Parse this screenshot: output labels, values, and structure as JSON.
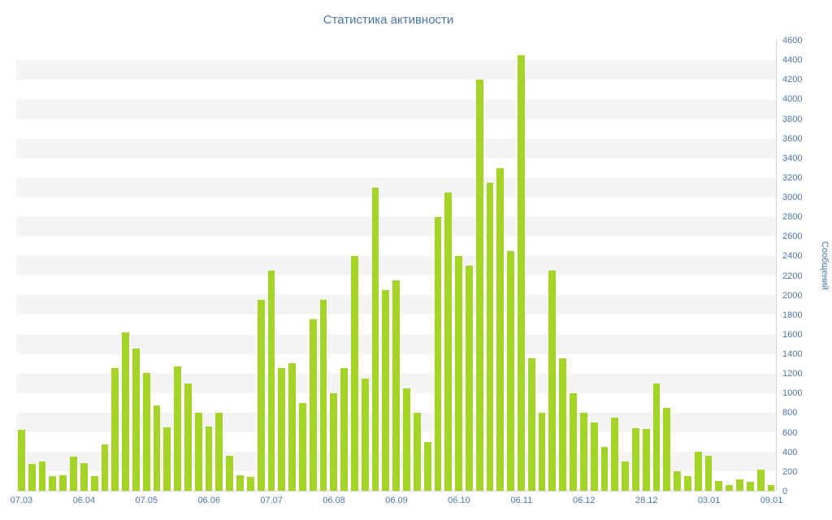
{
  "title": "Статистика активности",
  "colors": {
    "bar": "#a5d428",
    "text": "#4a76ac",
    "stripe": "#f4f4f4",
    "axis_line": "#d8d8d8",
    "background": "#ffffff"
  },
  "chart_data": {
    "type": "bar",
    "title": "Статистика активности",
    "ylabel": "Сообщений",
    "xlabel": "",
    "ylim": [
      0,
      4600
    ],
    "ytick_step": 200,
    "grid": "horizontal-stripes",
    "legend": "none",
    "y_tick_labels": [
      4600,
      4400,
      4200,
      4000,
      3800,
      3600,
      3400,
      3200,
      3000,
      2800,
      2600,
      2400,
      2200,
      2000,
      1800,
      1600,
      1400,
      1200,
      1000,
      800,
      600,
      400,
      200,
      0
    ],
    "x_tick_labels": [
      "07.03",
      "06.04",
      "07.05",
      "06.06",
      "07.07",
      "06.08",
      "06.09",
      "06.10",
      "06.11",
      "06.12",
      "28.12",
      "03.01",
      "09.01"
    ],
    "x_tick_every": 6,
    "values": [
      620,
      270,
      300,
      150,
      160,
      350,
      280,
      150,
      470,
      1250,
      1620,
      1450,
      1200,
      870,
      650,
      1270,
      1100,
      800,
      660,
      800,
      360,
      160,
      140,
      1950,
      2250,
      1250,
      1300,
      900,
      1750,
      1950,
      1000,
      1250,
      2400,
      1150,
      3100,
      2050,
      2150,
      1050,
      800,
      500,
      2800,
      3050,
      2400,
      2300,
      4200,
      3150,
      3300,
      2450,
      4450,
      1350,
      800,
      2250,
      1350,
      1000,
      800,
      700,
      450,
      750,
      300,
      640,
      630,
      1100,
      850,
      200,
      150,
      400,
      360,
      100,
      60,
      120,
      90,
      220,
      60
    ]
  }
}
